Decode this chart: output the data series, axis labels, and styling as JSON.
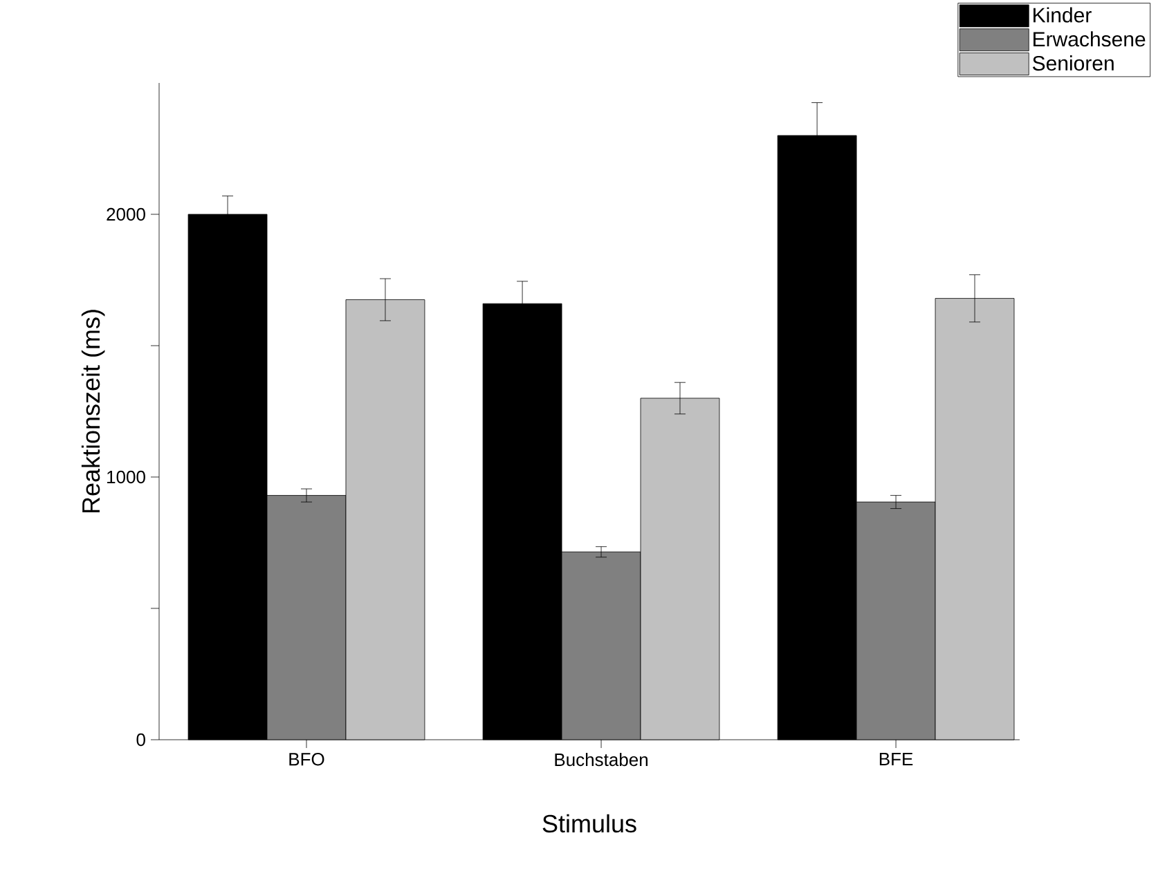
{
  "chart_data": {
    "type": "bar",
    "xlabel": "Stimulus",
    "ylabel": "Reaktionszeit (ms)",
    "categories": [
      "BFO",
      "Buchstaben",
      "BFE"
    ],
    "series": [
      {
        "name": "Kinder",
        "color": "#000000",
        "values": [
          2000,
          1660,
          2300
        ],
        "errors": [
          70,
          85,
          125
        ]
      },
      {
        "name": "Erwachsene",
        "color": "#808080",
        "values": [
          930,
          715,
          905
        ],
        "errors": [
          25,
          20,
          25
        ]
      },
      {
        "name": "Senioren",
        "color": "#c0c0c0",
        "values": [
          1675,
          1300,
          1680
        ],
        "errors": [
          80,
          60,
          90
        ]
      }
    ],
    "ylim": [
      0,
      2500
    ],
    "yticks": [
      0,
      {
        "value": 500,
        "label": null
      },
      1000,
      {
        "value": 1500,
        "label": null
      },
      2000
    ],
    "grid": false,
    "legend": "top right"
  }
}
